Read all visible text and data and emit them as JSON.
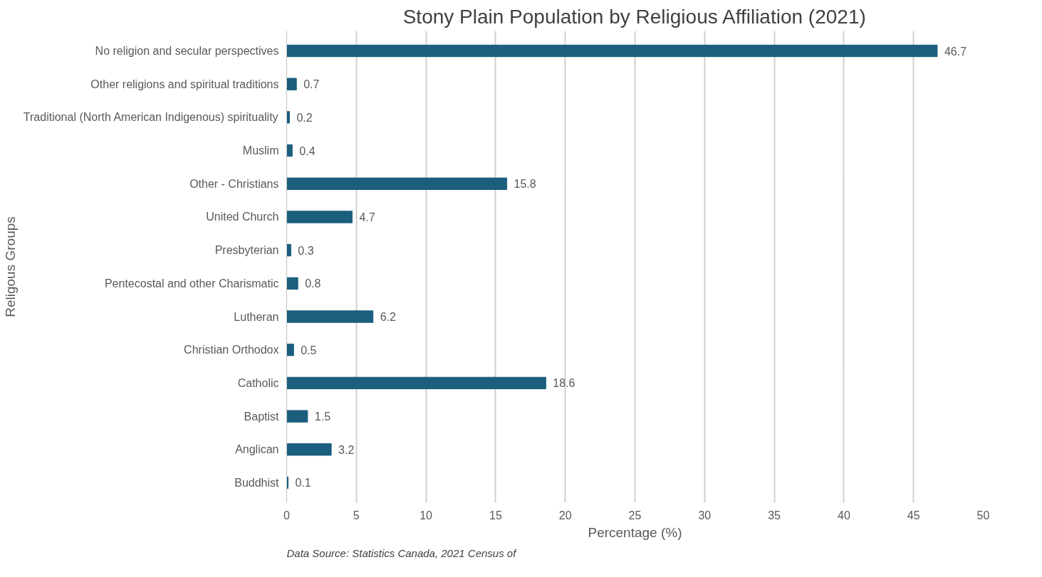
{
  "chart_data": {
    "type": "bar",
    "orientation": "horizontal",
    "title": "Stony Plain Population by Religious Affiliation (2021)",
    "xlabel": "Percentage (%)",
    "ylabel": "Religous Groups",
    "categories": [
      "No religion and secular perspectives",
      "Other religions and spiritual traditions",
      "Traditional (North American Indigenous) spirituality",
      "Muslim",
      "Other - Christians",
      "United Church",
      "Presbyterian",
      "Pentecostal and other Charismatic",
      "Lutheran",
      "Christian Orthodox",
      "Catholic",
      "Baptist",
      "Anglican",
      "Buddhist"
    ],
    "values": [
      46.7,
      0.7,
      0.2,
      0.4,
      15.8,
      4.7,
      0.3,
      0.8,
      6.2,
      0.5,
      18.6,
      1.5,
      3.2,
      0.1
    ],
    "color": "#1b5e7e",
    "xlim": [
      0,
      50
    ],
    "xticks": [
      0,
      5,
      10,
      15,
      20,
      25,
      30,
      35,
      40,
      45,
      50
    ],
    "grid": "x",
    "data_labels": true,
    "annotations": [
      "Data Source: Statistics Canada, 2021 Census of"
    ]
  }
}
